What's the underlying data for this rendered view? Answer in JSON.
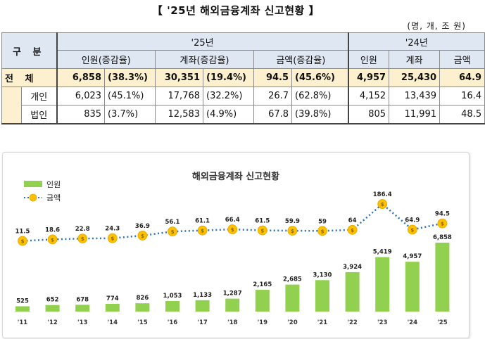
{
  "title": "【 '25년 해외금융계좌 신고현황 】",
  "unit": "(명, 개, 조 원)",
  "table": {
    "gubun": "구 분",
    "year_25": "'25년",
    "year_24": "'24년",
    "cols_25": [
      "인원(증감율)",
      "계좌(증감율)",
      "금액(증감율)"
    ],
    "cols_24": [
      "인원",
      "계좌",
      "금액"
    ],
    "rows": [
      {
        "label": "전 체",
        "p": "6,858",
        "pr": "(38.3%)",
        "a": "30,351",
        "ar": "(19.4%)",
        "m": "94.5",
        "mr": "(45.6%)",
        "p24": "4,957",
        "a24": "25,430",
        "m24": "64.9"
      },
      {
        "label": "개인",
        "p": "6,023",
        "pr": "(45.1%)",
        "a": "17,768",
        "ar": "(32.2%)",
        "m": "26.7",
        "mr": "(62.8%)",
        "p24": "4,152",
        "a24": "13,439",
        "m24": "16.4"
      },
      {
        "label": "법인",
        "p": "835",
        "pr": "(3.7%)",
        "a": "12,583",
        "ar": "(4.9%)",
        "m": "67.8",
        "mr": "(39.8%)",
        "p24": "805",
        "a24": "11,991",
        "m24": "48.5"
      }
    ]
  },
  "chart_data": {
    "type": "bar",
    "title": "해외금융계좌 신고현황",
    "categories": [
      "'11",
      "'12",
      "'13",
      "'14",
      "'15",
      "'16",
      "'17",
      "'18",
      "'19",
      "'20",
      "'21",
      "'22",
      "'23",
      "'24",
      "'25"
    ],
    "series": [
      {
        "name": "인원",
        "type": "bar",
        "color": "#92d050",
        "values": [
          525,
          652,
          678,
          774,
          826,
          1053,
          1133,
          1287,
          2165,
          2685,
          3130,
          3924,
          5419,
          4957,
          6858
        ],
        "labels": [
          "525",
          "652",
          "678",
          "774",
          "826",
          "1,053",
          "1,133",
          "1,287",
          "2,165",
          "2,685",
          "3,130",
          "3,924",
          "5,419",
          "4,957",
          "6,858"
        ]
      },
      {
        "name": "금액",
        "type": "line",
        "color": "#2e75b6",
        "marker_color": "#ffc000",
        "values": [
          11.5,
          18.6,
          22.8,
          24.3,
          36.9,
          56.1,
          61.1,
          66.4,
          61.5,
          59.9,
          59,
          64,
          186.4,
          64.9,
          94.5
        ],
        "labels": [
          "11.5",
          "18.6",
          "22.8",
          "24.3",
          "36.9",
          "56.1",
          "61.1",
          "66.4",
          "61.5",
          "59.9",
          "59",
          "64",
          "186.4",
          "64.9",
          "94.5"
        ]
      }
    ],
    "legend": "top-left",
    "grid": false
  }
}
